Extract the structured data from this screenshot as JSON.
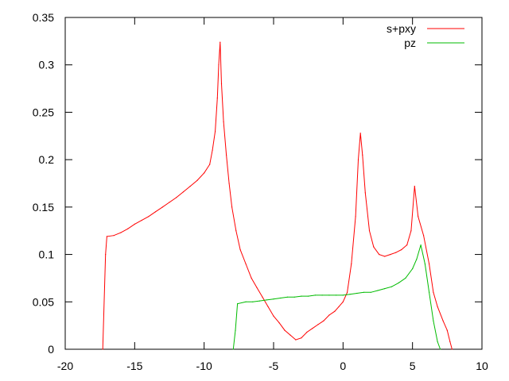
{
  "chart_data": {
    "type": "line",
    "title": "",
    "xlabel": "",
    "ylabel": "",
    "xlim": [
      -20,
      10
    ],
    "ylim": [
      0,
      0.35
    ],
    "x_ticks": [
      "-20",
      "-15",
      "-10",
      "-5",
      "0",
      "5",
      "10"
    ],
    "y_ticks": [
      "0",
      "0.05",
      "0.1",
      "0.15",
      "0.2",
      "0.25",
      "0.3",
      "0.35"
    ],
    "grid": false,
    "legend_position": "top-right",
    "series": [
      {
        "name": "s+pxy",
        "color": "#ff0000",
        "points": [
          [
            -17.3,
            0
          ],
          [
            -17.1,
            0.1
          ],
          [
            -17.0,
            0.119
          ],
          [
            -16.5,
            0.12
          ],
          [
            -16.0,
            0.123
          ],
          [
            -15.5,
            0.127
          ],
          [
            -15.0,
            0.132
          ],
          [
            -14.5,
            0.136
          ],
          [
            -14.0,
            0.14
          ],
          [
            -13.5,
            0.145
          ],
          [
            -13.0,
            0.15
          ],
          [
            -12.5,
            0.155
          ],
          [
            -12.0,
            0.16
          ],
          [
            -11.5,
            0.166
          ],
          [
            -11.0,
            0.172
          ],
          [
            -10.5,
            0.178
          ],
          [
            -10.0,
            0.186
          ],
          [
            -9.6,
            0.195
          ],
          [
            -9.4,
            0.21
          ],
          [
            -9.2,
            0.23
          ],
          [
            -9.05,
            0.265
          ],
          [
            -8.95,
            0.3
          ],
          [
            -8.85,
            0.324
          ],
          [
            -8.75,
            0.28
          ],
          [
            -8.6,
            0.24
          ],
          [
            -8.4,
            0.205
          ],
          [
            -8.2,
            0.175
          ],
          [
            -8.0,
            0.15
          ],
          [
            -7.7,
            0.125
          ],
          [
            -7.4,
            0.105
          ],
          [
            -7.0,
            0.09
          ],
          [
            -6.6,
            0.075
          ],
          [
            -6.2,
            0.065
          ],
          [
            -5.8,
            0.055
          ],
          [
            -5.4,
            0.045
          ],
          [
            -5.0,
            0.035
          ],
          [
            -4.6,
            0.028
          ],
          [
            -4.2,
            0.02
          ],
          [
            -3.8,
            0.015
          ],
          [
            -3.4,
            0.01
          ],
          [
            -3.0,
            0.012
          ],
          [
            -2.6,
            0.018
          ],
          [
            -2.2,
            0.022
          ],
          [
            -1.8,
            0.026
          ],
          [
            -1.4,
            0.03
          ],
          [
            -1.0,
            0.036
          ],
          [
            -0.6,
            0.04
          ],
          [
            -0.3,
            0.045
          ],
          [
            0.0,
            0.05
          ],
          [
            0.3,
            0.06
          ],
          [
            0.6,
            0.09
          ],
          [
            0.9,
            0.14
          ],
          [
            1.1,
            0.2
          ],
          [
            1.25,
            0.228
          ],
          [
            1.4,
            0.205
          ],
          [
            1.6,
            0.165
          ],
          [
            1.9,
            0.125
          ],
          [
            2.2,
            0.108
          ],
          [
            2.6,
            0.1
          ],
          [
            3.0,
            0.098
          ],
          [
            3.4,
            0.1
          ],
          [
            3.8,
            0.102
          ],
          [
            4.2,
            0.105
          ],
          [
            4.6,
            0.11
          ],
          [
            4.9,
            0.125
          ],
          [
            5.15,
            0.172
          ],
          [
            5.4,
            0.14
          ],
          [
            5.8,
            0.12
          ],
          [
            6.2,
            0.09
          ],
          [
            6.5,
            0.06
          ],
          [
            6.8,
            0.045
          ],
          [
            7.2,
            0.03
          ],
          [
            7.5,
            0.02
          ],
          [
            7.7,
            0.008
          ],
          [
            7.85,
            0
          ]
        ]
      },
      {
        "name": "pz",
        "color": "#00bb00",
        "points": [
          [
            -7.9,
            0
          ],
          [
            -7.75,
            0.02
          ],
          [
            -7.6,
            0.048
          ],
          [
            -7.0,
            0.05
          ],
          [
            -6.5,
            0.05
          ],
          [
            -6.0,
            0.051
          ],
          [
            -5.5,
            0.052
          ],
          [
            -5.0,
            0.053
          ],
          [
            -4.5,
            0.054
          ],
          [
            -4.0,
            0.055
          ],
          [
            -3.5,
            0.055
          ],
          [
            -3.0,
            0.056
          ],
          [
            -2.5,
            0.056
          ],
          [
            -2.0,
            0.057
          ],
          [
            -1.5,
            0.057
          ],
          [
            -1.0,
            0.057
          ],
          [
            -0.5,
            0.057
          ],
          [
            0.0,
            0.057
          ],
          [
            0.5,
            0.058
          ],
          [
            1.0,
            0.059
          ],
          [
            1.5,
            0.06
          ],
          [
            2.0,
            0.06
          ],
          [
            2.5,
            0.062
          ],
          [
            3.0,
            0.064
          ],
          [
            3.5,
            0.066
          ],
          [
            4.0,
            0.07
          ],
          [
            4.5,
            0.075
          ],
          [
            5.0,
            0.085
          ],
          [
            5.3,
            0.095
          ],
          [
            5.6,
            0.11
          ],
          [
            5.9,
            0.09
          ],
          [
            6.2,
            0.06
          ],
          [
            6.5,
            0.03
          ],
          [
            6.8,
            0.008
          ],
          [
            7.0,
            0
          ]
        ]
      }
    ]
  }
}
